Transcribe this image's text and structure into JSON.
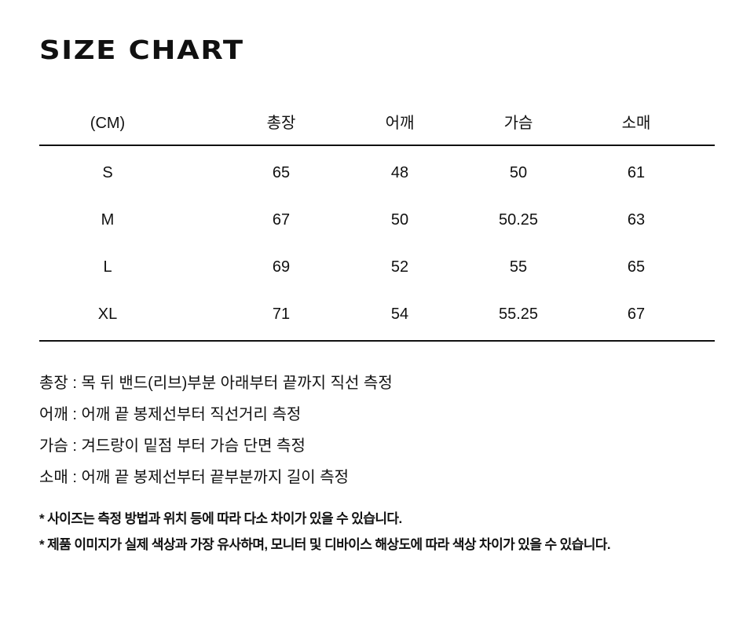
{
  "title": "SIZE CHART",
  "table": {
    "headers": [
      "(CM)",
      "총장",
      "어깨",
      "가슴",
      "소매"
    ],
    "rows": [
      [
        "S",
        "65",
        "48",
        "50",
        "61"
      ],
      [
        "M",
        "67",
        "50",
        "50.25",
        "63"
      ],
      [
        "L",
        "69",
        "52",
        "55",
        "65"
      ],
      [
        "XL",
        "71",
        "54",
        "55.25",
        "67"
      ]
    ]
  },
  "notes": [
    "총장 : 목 뒤 밴드(리브)부분 아래부터 끝까지 직선 측정",
    "어깨 : 어깨 끝 봉제선부터 직선거리 측정",
    "가슴 : 겨드랑이 밑점 부터 가슴 단면 측정",
    "소매 : 어깨 끝 봉제선부터 끝부분까지 길이 측정"
  ],
  "footnotes": [
    "* 사이즈는 측정 방법과 위치 등에 따라 다소 차이가 있을 수 있습니다.",
    "* 제품 이미지가 실제 색상과 가장 유사하며, 모니터 및 디바이스 해상도에 따라 색상 차이가 있을 수 있습니다."
  ]
}
